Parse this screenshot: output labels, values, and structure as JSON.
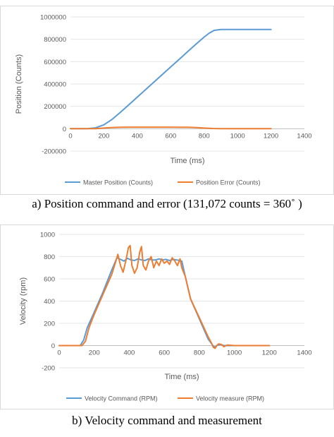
{
  "captions": {
    "a": "a) Position command and error (131,072 counts = 360˚ )",
    "b": "b) Velocity command and measurement"
  },
  "chart_data": [
    {
      "type": "line",
      "title": "",
      "xlabel": "Time (ms)",
      "ylabel": "Position (Counts)",
      "xlim": [
        0,
        1400
      ],
      "ylim": [
        -200000,
        1000000
      ],
      "x_ticks": [
        "0",
        "200",
        "400",
        "600",
        "800",
        "1000",
        "1200",
        "1400"
      ],
      "y_ticks": [
        "-200000",
        "0",
        "200000",
        "400000",
        "600000",
        "800000",
        "1000000"
      ],
      "grid": "horizontal",
      "legend_position": "bottom",
      "series": [
        {
          "name": "Master Position (Counts)",
          "color": "#5b9bd5",
          "x": [
            0,
            100,
            150,
            200,
            250,
            300,
            350,
            400,
            450,
            500,
            550,
            600,
            650,
            700,
            750,
            800,
            830,
            860,
            900,
            1000,
            1100,
            1200
          ],
          "y": [
            0,
            1000,
            8000,
            35000,
            85000,
            148000,
            215000,
            283000,
            350000,
            418000,
            485000,
            553000,
            620000,
            688000,
            755000,
            820000,
            855000,
            880000,
            888000,
            888000,
            888000,
            888000
          ]
        },
        {
          "name": "Position Error (Counts)",
          "color": "#ed7d31",
          "x": [
            0,
            100,
            150,
            200,
            250,
            300,
            350,
            400,
            500,
            600,
            700,
            750,
            800,
            850,
            900,
            1000,
            1100,
            1200
          ],
          "y": [
            0,
            0,
            1000,
            6000,
            11000,
            13000,
            14000,
            14000,
            14000,
            14000,
            13000,
            11000,
            6000,
            2000,
            0,
            0,
            0,
            0
          ]
        }
      ]
    },
    {
      "type": "line",
      "title": "",
      "xlabel": "Time (ms)",
      "ylabel": "Velocity (rpm)",
      "xlim": [
        0,
        1400
      ],
      "ylim": [
        -200,
        1000
      ],
      "x_ticks": [
        "0",
        "200",
        "400",
        "600",
        "800",
        "1000",
        "1200",
        "1400"
      ],
      "y_ticks": [
        "-200",
        "0",
        "200",
        "400",
        "600",
        "800",
        "1000"
      ],
      "grid": "horizontal",
      "legend_position": "bottom",
      "series": [
        {
          "name": "Velocity Command (RPM)",
          "color": "#5b9bd5",
          "x": [
            0,
            120,
            140,
            160,
            200,
            250,
            300,
            330,
            350,
            370,
            390,
            410,
            430,
            450,
            470,
            490,
            510,
            530,
            550,
            570,
            590,
            610,
            630,
            650,
            670,
            690,
            700,
            720,
            750,
            800,
            850,
            880,
            890,
            900,
            920,
            940,
            1000,
            1100,
            1200
          ],
          "y": [
            0,
            0,
            50,
            160,
            300,
            480,
            680,
            790,
            775,
            760,
            785,
            770,
            765,
            780,
            770,
            765,
            780,
            770,
            770,
            780,
            770,
            775,
            765,
            775,
            770,
            765,
            760,
            620,
            420,
            240,
            60,
            -5,
            -15,
            0,
            10,
            0,
            0,
            0,
            0
          ]
        },
        {
          "name": "Velocity measure (RPM)",
          "color": "#ed7d31",
          "x": [
            0,
            130,
            150,
            170,
            200,
            250,
            300,
            320,
            335,
            350,
            365,
            380,
            395,
            405,
            415,
            430,
            445,
            460,
            470,
            480,
            495,
            510,
            525,
            540,
            555,
            570,
            585,
            600,
            615,
            630,
            645,
            660,
            675,
            690,
            700,
            720,
            750,
            800,
            850,
            870,
            880,
            890,
            900,
            910,
            925,
            940,
            960,
            1000,
            1100,
            1200
          ],
          "y": [
            0,
            0,
            40,
            160,
            280,
            460,
            640,
            740,
            820,
            720,
            660,
            760,
            880,
            900,
            720,
            650,
            700,
            840,
            890,
            720,
            680,
            760,
            800,
            700,
            760,
            720,
            780,
            740,
            760,
            730,
            790,
            760,
            720,
            780,
            700,
            620,
            420,
            250,
            80,
            20,
            -15,
            -25,
            0,
            15,
            10,
            -10,
            5,
            0,
            0,
            0
          ]
        }
      ]
    }
  ]
}
